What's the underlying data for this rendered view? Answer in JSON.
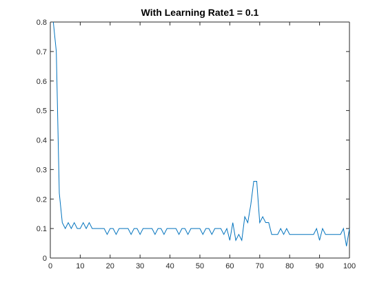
{
  "chart_data": {
    "type": "line",
    "title": "With Learning Rate1 = 0.1",
    "xlabel": "",
    "ylabel": "",
    "xlim": [
      0,
      100
    ],
    "ylim": [
      0,
      0.8
    ],
    "xticks": [
      0,
      10,
      20,
      30,
      40,
      50,
      60,
      70,
      80,
      90,
      100
    ],
    "yticks": [
      0,
      0.1,
      0.2,
      0.3,
      0.4,
      0.5,
      0.6,
      0.7,
      0.8
    ],
    "xtick_labels": [
      "0",
      "10",
      "20",
      "30",
      "40",
      "50",
      "60",
      "70",
      "80",
      "90",
      "100"
    ],
    "ytick_labels": [
      "0",
      "0.1",
      "0.2",
      "0.3",
      "0.4",
      "0.5",
      "0.6",
      "0.7",
      "0.8"
    ],
    "grid": false,
    "line_color": "#0072BD",
    "series": [
      {
        "x": [
          1,
          2,
          3,
          4,
          5,
          6,
          7,
          8,
          9,
          10,
          11,
          12,
          13,
          14,
          15,
          16,
          17,
          18,
          19,
          20,
          21,
          22,
          23,
          24,
          25,
          26,
          27,
          28,
          29,
          30,
          31,
          32,
          33,
          34,
          35,
          36,
          37,
          38,
          39,
          40,
          41,
          42,
          43,
          44,
          45,
          46,
          47,
          48,
          49,
          50,
          51,
          52,
          53,
          54,
          55,
          56,
          57,
          58,
          59,
          60,
          61,
          62,
          63,
          64,
          65,
          66,
          67,
          68,
          69,
          70,
          71,
          72,
          73,
          74,
          75,
          76,
          77,
          78,
          79,
          80,
          81,
          82,
          83,
          84,
          85,
          86,
          87,
          88,
          89,
          90,
          91,
          92,
          93,
          94,
          95,
          96,
          97,
          98,
          99,
          100
        ],
        "values": [
          0.8,
          0.7,
          0.22,
          0.12,
          0.1,
          0.12,
          0.1,
          0.12,
          0.1,
          0.1,
          0.12,
          0.1,
          0.12,
          0.1,
          0.1,
          0.1,
          0.1,
          0.1,
          0.08,
          0.1,
          0.1,
          0.08,
          0.1,
          0.1,
          0.1,
          0.1,
          0.08,
          0.1,
          0.1,
          0.08,
          0.1,
          0.1,
          0.1,
          0.1,
          0.08,
          0.1,
          0.1,
          0.08,
          0.1,
          0.1,
          0.1,
          0.1,
          0.08,
          0.1,
          0.1,
          0.08,
          0.1,
          0.1,
          0.1,
          0.1,
          0.08,
          0.1,
          0.1,
          0.08,
          0.1,
          0.1,
          0.1,
          0.08,
          0.1,
          0.06,
          0.12,
          0.06,
          0.08,
          0.06,
          0.14,
          0.12,
          0.18,
          0.26,
          0.26,
          0.12,
          0.14,
          0.12,
          0.12,
          0.08,
          0.08,
          0.08,
          0.1,
          0.08,
          0.1,
          0.08,
          0.08,
          0.08,
          0.08,
          0.08,
          0.08,
          0.08,
          0.08,
          0.08,
          0.1,
          0.06,
          0.1,
          0.08,
          0.08,
          0.08,
          0.08,
          0.08,
          0.08,
          0.1,
          0.04,
          0.1
        ]
      }
    ]
  }
}
